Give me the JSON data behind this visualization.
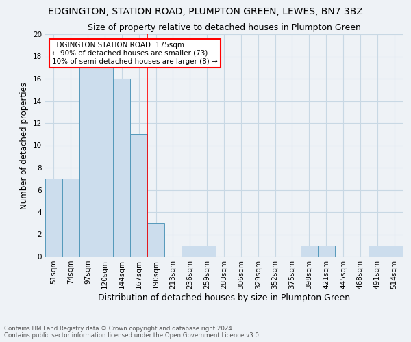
{
  "title": "EDGINGTON, STATION ROAD, PLUMPTON GREEN, LEWES, BN7 3BZ",
  "subtitle": "Size of property relative to detached houses in Plumpton Green",
  "xlabel": "Distribution of detached houses by size in Plumpton Green",
  "ylabel": "Number of detached properties",
  "footer_line1": "Contains HM Land Registry data © Crown copyright and database right 2024.",
  "footer_line2": "Contains public sector information licensed under the Open Government Licence v3.0.",
  "bar_labels": [
    "51sqm",
    "74sqm",
    "97sqm",
    "120sqm",
    "144sqm",
    "167sqm",
    "190sqm",
    "213sqm",
    "236sqm",
    "259sqm",
    "283sqm",
    "306sqm",
    "329sqm",
    "352sqm",
    "375sqm",
    "398sqm",
    "421sqm",
    "445sqm",
    "468sqm",
    "491sqm",
    "514sqm"
  ],
  "bar_values": [
    7,
    7,
    17,
    17,
    16,
    11,
    3,
    0,
    1,
    1,
    0,
    0,
    0,
    0,
    0,
    1,
    1,
    0,
    0,
    1,
    1
  ],
  "bar_color": "#ccdded",
  "bar_edge_color": "#5599bb",
  "red_line_x": 5.5,
  "annotation_text": "EDGINGTON STATION ROAD: 175sqm\n← 90% of detached houses are smaller (73)\n10% of semi-detached houses are larger (8) →",
  "annotation_box_color": "white",
  "annotation_box_edge_color": "red",
  "ylim": [
    0,
    20
  ],
  "yticks": [
    0,
    2,
    4,
    6,
    8,
    10,
    12,
    14,
    16,
    18,
    20
  ],
  "grid_color": "#c8d8e4",
  "background_color": "#eef2f6",
  "title_fontsize": 10,
  "subtitle_fontsize": 9,
  "annot_fontsize": 7.5,
  "xlabel_fontsize": 9,
  "ylabel_fontsize": 8.5,
  "tick_fontsize": 7.5,
  "footer_fontsize": 6.2,
  "footer_color": "#555555"
}
